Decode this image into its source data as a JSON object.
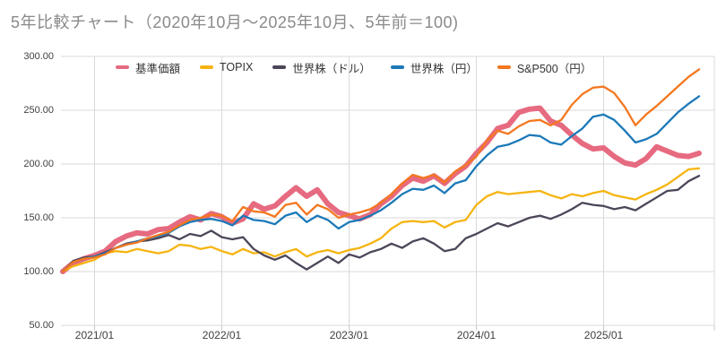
{
  "chart_data": {
    "type": "line",
    "title": "5年比較チャート（2020年10月～2025年10月、5年前＝100)",
    "x_start": "2020/10",
    "x_end": "2025/10",
    "points_per_series": 61,
    "x_tick_labels": [
      "2021/01",
      "2022/01",
      "2023/01",
      "2024/01",
      "2025/01"
    ],
    "y_tick_labels": [
      "300.00",
      "250.00",
      "200.00",
      "150.00",
      "100.00",
      "50.00"
    ],
    "ylim": [
      50,
      300
    ],
    "y_gridline_values": [
      300,
      250,
      200,
      150,
      100,
      50
    ],
    "grid": true,
    "legend_position": "top-inside",
    "colors": {
      "grid": "#d9d9d9",
      "tick": "#c9c9c9",
      "axis_text": "#404040",
      "title_text": "#8a8a8a",
      "legend_text": "#333333",
      "background": "#ffffff"
    },
    "series": [
      {
        "name": "基準価額",
        "color": "#e66a80",
        "width": 6,
        "values": [
          100,
          108,
          112,
          115,
          119,
          128,
          133,
          136,
          135,
          139,
          140,
          146,
          151,
          148,
          154,
          151,
          145,
          149,
          163,
          158,
          161,
          170,
          178,
          170,
          176,
          163,
          155,
          152,
          149,
          153,
          163,
          170,
          180,
          187,
          184,
          189,
          182,
          191,
          198,
          210,
          220,
          233,
          236,
          248,
          251,
          252,
          240,
          236,
          227,
          219,
          214,
          215,
          207,
          201,
          199,
          205,
          216,
          212,
          208,
          207,
          210
        ]
      },
      {
        "name": "TOPIX",
        "color": "#f6b411",
        "width": 2.3,
        "values": [
          100,
          105,
          108,
          111,
          117,
          119,
          118,
          121,
          119,
          117,
          119,
          125,
          124,
          121,
          123,
          119,
          116,
          121,
          117,
          118,
          114,
          118,
          121,
          114,
          118,
          120,
          117,
          120,
          122,
          126,
          131,
          140,
          146,
          147,
          146,
          147,
          141,
          146,
          148,
          162,
          170,
          174,
          172,
          173,
          174,
          175,
          171,
          168,
          172,
          170,
          173,
          175,
          171,
          169,
          167,
          172,
          176,
          181,
          188,
          195,
          196
        ]
      },
      {
        "name": "世界株（ドル）",
        "color": "#4d4659",
        "width": 2.3,
        "values": [
          100,
          110,
          113,
          114,
          118,
          122,
          126,
          128,
          129,
          131,
          134,
          130,
          135,
          133,
          138,
          132,
          130,
          132,
          121,
          115,
          111,
          115,
          108,
          102,
          108,
          114,
          108,
          116,
          113,
          118,
          121,
          126,
          122,
          128,
          131,
          126,
          119,
          121,
          131,
          135,
          140,
          145,
          142,
          146,
          150,
          152,
          149,
          153,
          158,
          164,
          162,
          161,
          158,
          160,
          157,
          163,
          169,
          175,
          176,
          184,
          189
        ]
      },
      {
        "name": "世界株（円）",
        "color": "#1b79b8",
        "width": 2.3,
        "values": [
          100,
          109,
          112,
          114,
          117,
          122,
          125,
          128,
          131,
          133,
          136,
          142,
          146,
          148,
          149,
          147,
          143,
          152,
          148,
          147,
          144,
          152,
          155,
          146,
          152,
          148,
          140,
          146,
          148,
          152,
          157,
          164,
          172,
          177,
          176,
          180,
          173,
          182,
          185,
          198,
          208,
          216,
          218,
          222,
          227,
          226,
          220,
          218,
          226,
          233,
          244,
          246,
          241,
          231,
          220,
          223,
          228,
          238,
          248,
          256,
          263
        ]
      },
      {
        "name": "S&P500（円）",
        "color": "#f4771f",
        "width": 2.3,
        "values": [
          100,
          109,
          112,
          113,
          116,
          122,
          125,
          127,
          131,
          134,
          137,
          143,
          148,
          150,
          153,
          152,
          147,
          160,
          156,
          155,
          151,
          162,
          164,
          153,
          162,
          158,
          150,
          153,
          155,
          158,
          164,
          172,
          182,
          190,
          187,
          190,
          183,
          193,
          199,
          207,
          222,
          231,
          228,
          235,
          240,
          241,
          236,
          241,
          255,
          265,
          271,
          272,
          266,
          253,
          236,
          246,
          254,
          263,
          272,
          281,
          288
        ]
      }
    ]
  }
}
